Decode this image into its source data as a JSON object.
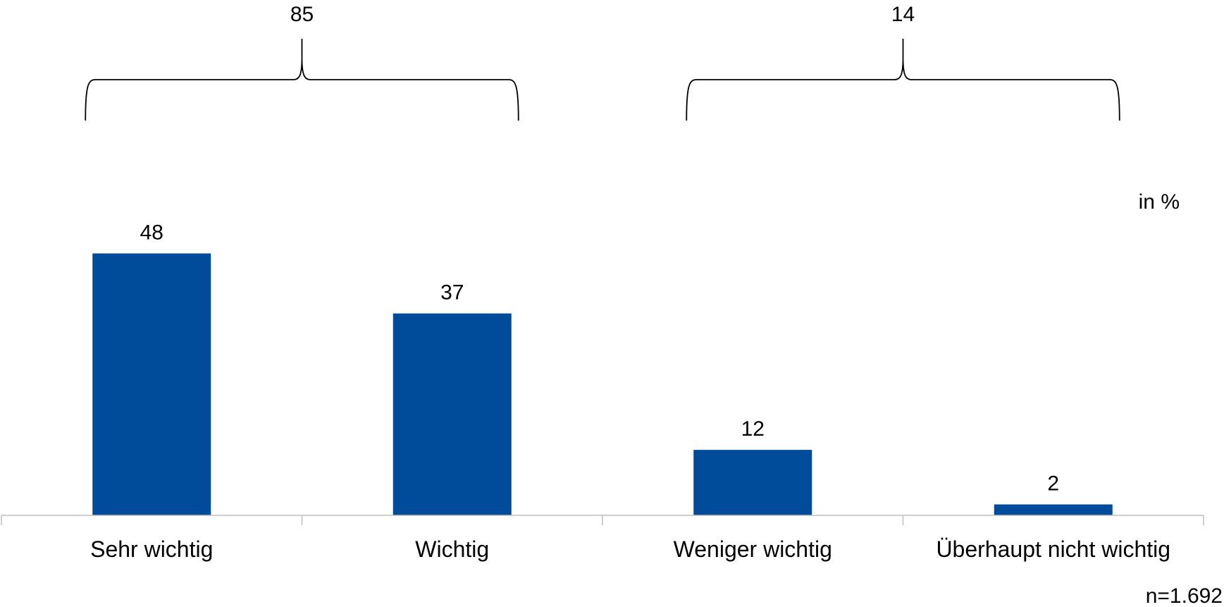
{
  "chart_data": {
    "type": "bar",
    "categories": [
      "Sehr wichtig",
      "Wichtig",
      "Weniger wichtig",
      "Überhaupt nicht wichtig"
    ],
    "values": [
      48,
      37,
      12,
      2
    ],
    "data_labels": [
      "48",
      "37",
      "12",
      "2"
    ],
    "unit_label": "in %",
    "sample_note": "n=1.692",
    "groups": [
      {
        "categories": [
          "Sehr wichtig",
          "Wichtig"
        ],
        "total": 85,
        "label": "85"
      },
      {
        "categories": [
          "Weniger wichtig",
          "Überhaupt nicht wichtig"
        ],
        "total": 14,
        "label": "14"
      }
    ],
    "ylim": [
      0,
      48
    ],
    "grid": false,
    "bar_color": "#004C9B",
    "axis_color": "#BFBFBF"
  }
}
